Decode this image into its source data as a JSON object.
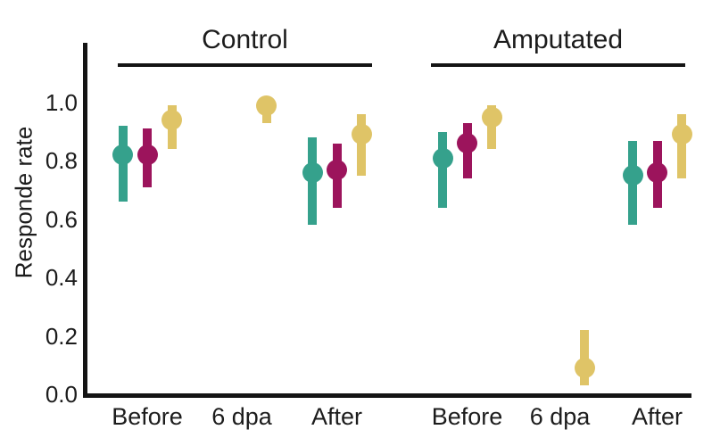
{
  "chart_data": {
    "type": "scatter",
    "subtype": "pointrange-with-error-bars",
    "title": "",
    "xlabel": "",
    "ylabel": "Responde rate",
    "facets": [
      "Control",
      "Amputated"
    ],
    "categories": [
      "Before",
      "6 dpa",
      "After"
    ],
    "yticks": {
      "labels": [
        "0.0",
        "0.2",
        "0.4",
        "0.6",
        "0.8",
        "1.0"
      ],
      "values": [
        0,
        0.2,
        0.4,
        0.6,
        0.8,
        1.0
      ]
    },
    "ylim": [
      0,
      1.05
    ],
    "grid": false,
    "legend": "none",
    "colors": {
      "teal": "#35A18C",
      "magenta": "#9C145C",
      "yellow": "#DFC467"
    },
    "series": [
      {
        "name": "teal",
        "color": "#35A18C",
        "values": [
          [
            {
              "y": 0.82,
              "lo": 0.66,
              "hi": 0.92
            },
            null,
            {
              "y": 0.76,
              "lo": 0.58,
              "hi": 0.88
            }
          ],
          [
            {
              "y": 0.81,
              "lo": 0.64,
              "hi": 0.9
            },
            null,
            {
              "y": 0.75,
              "lo": 0.58,
              "hi": 0.87
            }
          ]
        ]
      },
      {
        "name": "magenta",
        "color": "#9C145C",
        "values": [
          [
            {
              "y": 0.82,
              "lo": 0.71,
              "hi": 0.91
            },
            null,
            {
              "y": 0.77,
              "lo": 0.64,
              "hi": 0.86
            }
          ],
          [
            {
              "y": 0.86,
              "lo": 0.74,
              "hi": 0.93
            },
            null,
            {
              "y": 0.76,
              "lo": 0.64,
              "hi": 0.87
            }
          ]
        ]
      },
      {
        "name": "yellow",
        "color": "#DFC467",
        "values": [
          [
            {
              "y": 0.94,
              "lo": 0.84,
              "hi": 0.99
            },
            {
              "y": 0.99,
              "lo": 0.93,
              "hi": 1.0
            },
            {
              "y": 0.89,
              "lo": 0.75,
              "hi": 0.96
            }
          ],
          [
            {
              "y": 0.95,
              "lo": 0.84,
              "hi": 0.99
            },
            {
              "y": 0.09,
              "lo": 0.03,
              "hi": 0.22
            },
            {
              "y": 0.89,
              "lo": 0.74,
              "hi": 0.96
            }
          ]
        ]
      }
    ]
  }
}
